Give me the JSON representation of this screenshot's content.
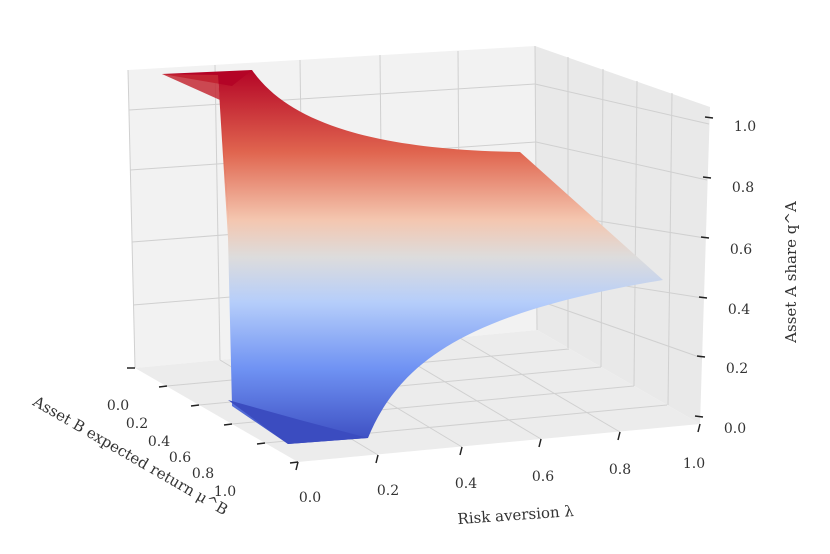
{
  "chart_data": {
    "type": "surface",
    "title": "",
    "colormap": "coolwarm",
    "xlabel": "Risk aversion λ",
    "ylabel": "Asset B expected return μ^B",
    "zlabel": "Asset A share q^A",
    "x_ticks": [
      "0.0",
      "0.2",
      "0.4",
      "0.6",
      "0.8",
      "1.0"
    ],
    "y_ticks": [
      "0.0",
      "0.2",
      "0.4",
      "0.6",
      "0.8",
      "1.0"
    ],
    "z_ticks": [
      "0.0",
      "0.2",
      "0.4",
      "0.6",
      "0.8",
      "1.0"
    ],
    "xlim": [
      0,
      1
    ],
    "ylim": [
      0,
      1
    ],
    "zlim": [
      0,
      1
    ],
    "grid": true,
    "surface_description_points": [
      {
        "lambda": 0.0,
        "muB": 0.0,
        "qA": 1.0
      },
      {
        "lambda": 0.1,
        "muB": 0.0,
        "qA": 1.0
      },
      {
        "lambda": 1.0,
        "muB": 0.0,
        "qA": 0.8
      },
      {
        "lambda": 1.0,
        "muB": 1.0,
        "qA": 0.55
      },
      {
        "lambda": 0.2,
        "muB": 1.0,
        "qA": 0.0
      },
      {
        "lambda": 0.0,
        "muB": 1.0,
        "qA": 0.0
      }
    ]
  }
}
